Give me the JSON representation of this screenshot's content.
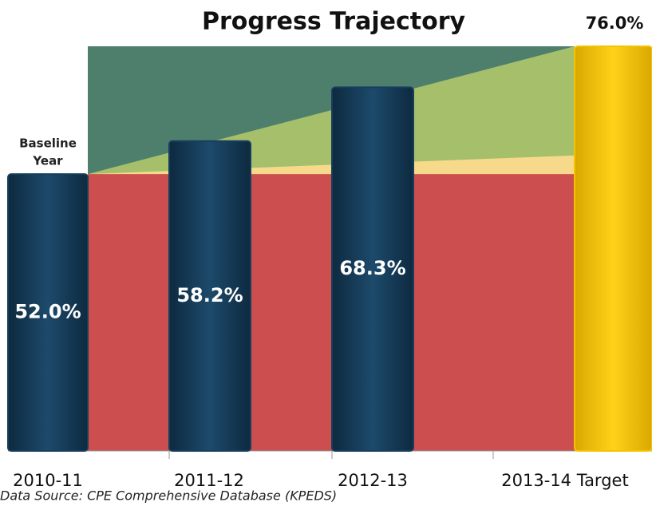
{
  "chart_data": {
    "type": "bar",
    "title": "Progress Trajectory",
    "categories": [
      "2010-11",
      "2011-12",
      "2012-13",
      "2013-14 Target"
    ],
    "values": [
      52.0,
      58.2,
      68.3,
      76.0
    ],
    "value_labels": [
      "52.0%",
      "58.2%",
      "68.3%",
      "76.0%"
    ],
    "colors": [
      "#173e5c",
      "#173e5c",
      "#173e5c",
      "#f5c400"
    ],
    "ylim": [
      0,
      76
    ],
    "background_color": "#4e7f6d",
    "bands": [
      {
        "color": "#a5bf6a",
        "start": 52,
        "end": 76
      },
      {
        "color": "#f7d98b",
        "start": 52,
        "end": 55.5
      },
      {
        "color": "#cc4e4e",
        "start": 52,
        "end": 52
      }
    ],
    "annotation": [
      "Baseline",
      "Year"
    ],
    "source": "Data Source: CPE Comprehensive Database (KPEDS)"
  }
}
